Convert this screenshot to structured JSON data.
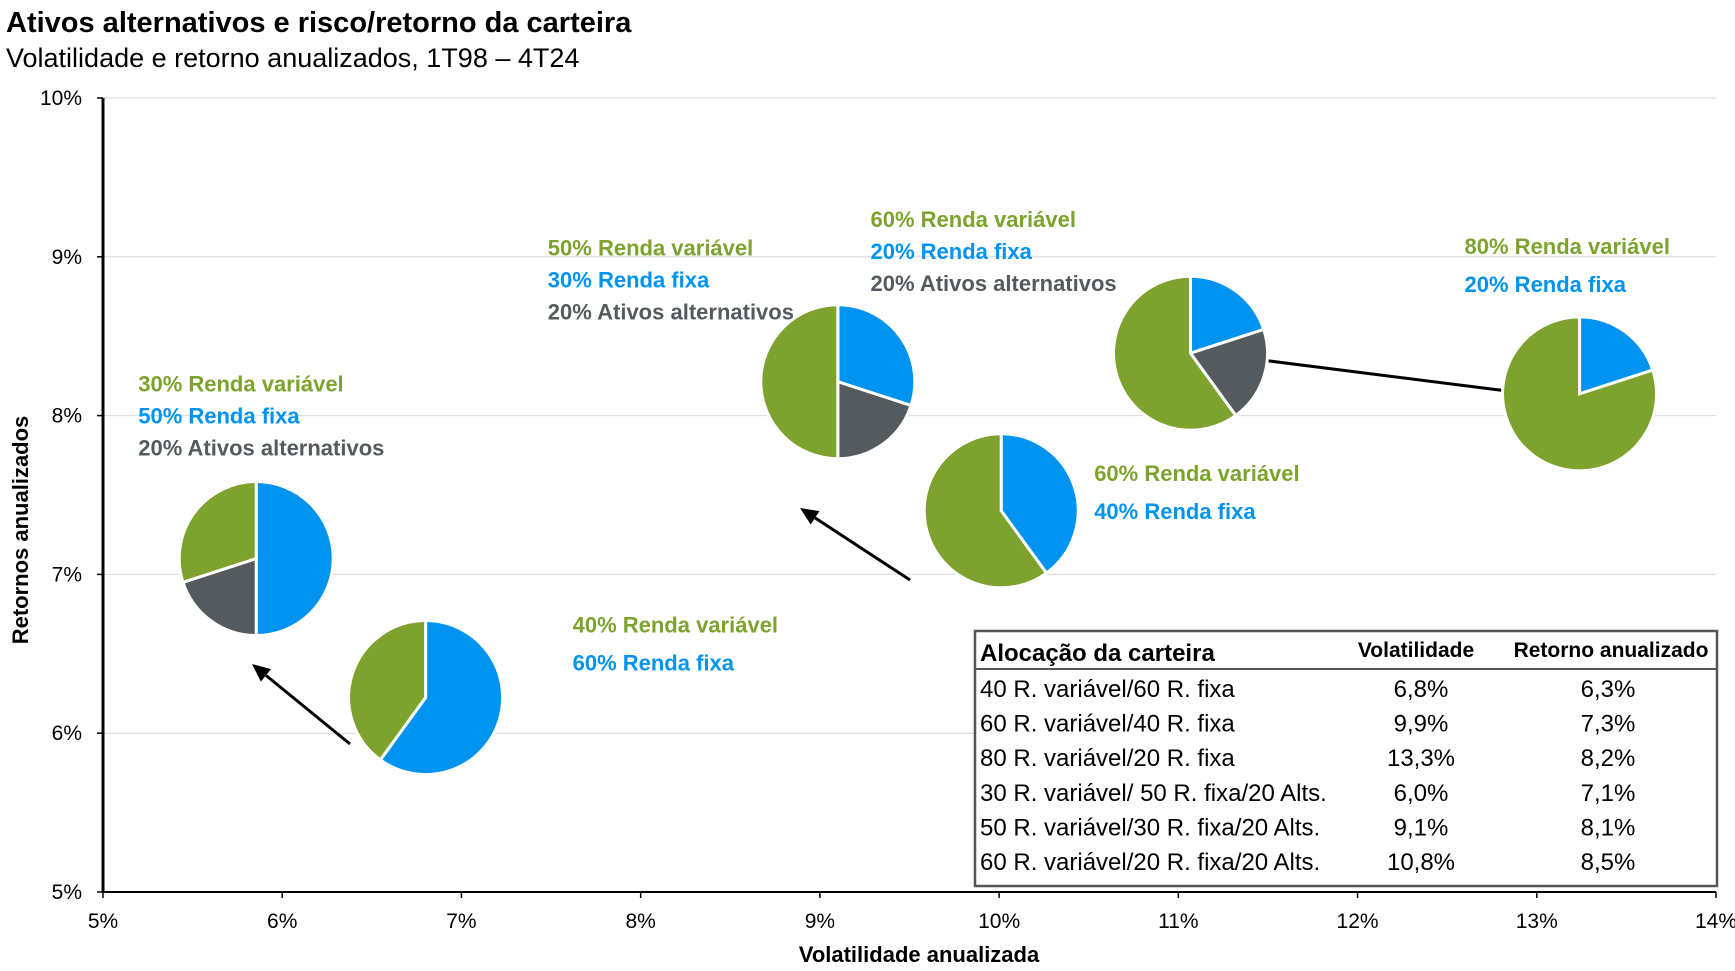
{
  "colors": {
    "equity": "#7da32e",
    "fixed_income": "#0093f0",
    "alternatives": "#555a5e",
    "grid": "#d9d9d9",
    "axis": "#000000"
  },
  "chart_data": {
    "type": "scatter",
    "title": "Ativos alternativos e risco/retorno da carteira",
    "subtitle": "Volatilidade e retorno anualizados, 1T98 – 4T24",
    "xlabel": "Volatilidade anualizada",
    "ylabel": "Retornos anualizados",
    "xlim": [
      5,
      14
    ],
    "ylim": [
      5,
      10
    ],
    "xticks": [
      "5%",
      "6%",
      "7%",
      "8%",
      "9%",
      "10%",
      "11%",
      "12%",
      "13%",
      "14%"
    ],
    "yticks": [
      "5%",
      "6%",
      "7%",
      "8%",
      "9%",
      "10%"
    ],
    "grid": true,
    "portfolios": [
      {
        "id": "p40-60",
        "x": 6.8,
        "y": 6.3,
        "slices": [
          {
            "cat": "fixed_income",
            "pct": 60
          },
          {
            "cat": "equity",
            "pct": 40
          }
        ],
        "labels": [
          "40% Renda variável",
          "60% Renda fixa"
        ],
        "label_pos": "right"
      },
      {
        "id": "p60-40",
        "x": 9.9,
        "y": 7.3,
        "slices": [
          {
            "cat": "fixed_income",
            "pct": 40
          },
          {
            "cat": "equity",
            "pct": 60
          }
        ],
        "labels": [
          "60% Renda variável",
          "40% Renda fixa"
        ],
        "label_pos": "right"
      },
      {
        "id": "p80-20",
        "x": 13.3,
        "y": 8.2,
        "slices": [
          {
            "cat": "fixed_income",
            "pct": 20
          },
          {
            "cat": "equity",
            "pct": 80
          }
        ],
        "labels": [
          "80% Renda variável",
          "20% Renda fixa"
        ],
        "label_pos": "top"
      },
      {
        "id": "p30-50-20",
        "x": 6.0,
        "y": 7.1,
        "slices": [
          {
            "cat": "fixed_income",
            "pct": 50
          },
          {
            "cat": "alternatives",
            "pct": 20
          },
          {
            "cat": "equity",
            "pct": 30
          }
        ],
        "labels": [
          "30% Renda variável",
          "50% Renda fixa",
          "20% Ativos alternativos"
        ],
        "label_pos": "top"
      },
      {
        "id": "p50-30-20",
        "x": 9.1,
        "y": 8.1,
        "slices": [
          {
            "cat": "fixed_income",
            "pct": 30
          },
          {
            "cat": "alternatives",
            "pct": 20
          },
          {
            "cat": "equity",
            "pct": 50
          }
        ],
        "labels": [
          "50% Renda variável",
          "30% Renda fixa",
          "20% Ativos alternativos"
        ],
        "label_pos": "top"
      },
      {
        "id": "p60-20-20",
        "x": 10.8,
        "y": 8.5,
        "slices": [
          {
            "cat": "fixed_income",
            "pct": 20
          },
          {
            "cat": "alternatives",
            "pct": 20
          },
          {
            "cat": "equity",
            "pct": 60
          }
        ],
        "labels": [
          "60% Renda variável",
          "20% Renda fixa",
          "20% Ativos alternativos"
        ],
        "label_pos": "top"
      }
    ],
    "arrows": [
      {
        "from": "p40-60",
        "to": "p30-50-20"
      },
      {
        "from": "p60-40",
        "to": "p50-30-20"
      },
      {
        "from": "p80-20",
        "to": "p60-20-20"
      }
    ],
    "table": {
      "headers": [
        "Alocação da carteira",
        "Volatilidade",
        "Retorno anualizado"
      ],
      "rows": [
        [
          "40 R. variável/60 R. fixa",
          "6,8%",
          "6,3%"
        ],
        [
          "60 R. variável/40 R. fixa",
          "9,9%",
          "7,3%"
        ],
        [
          "80 R. variável/20 R. fixa",
          "13,3%",
          "8,2%"
        ],
        [
          "30 R. variável/ 50 R. fixa/20 Alts.",
          "6,0%",
          "7,1%"
        ],
        [
          "50 R. variável/30 R. fixa/20 Alts.",
          "9,1%",
          "8,1%"
        ],
        [
          "60 R. variável/20 R. fixa/20 Alts.",
          "10,8%",
          "8,5%"
        ]
      ]
    }
  }
}
